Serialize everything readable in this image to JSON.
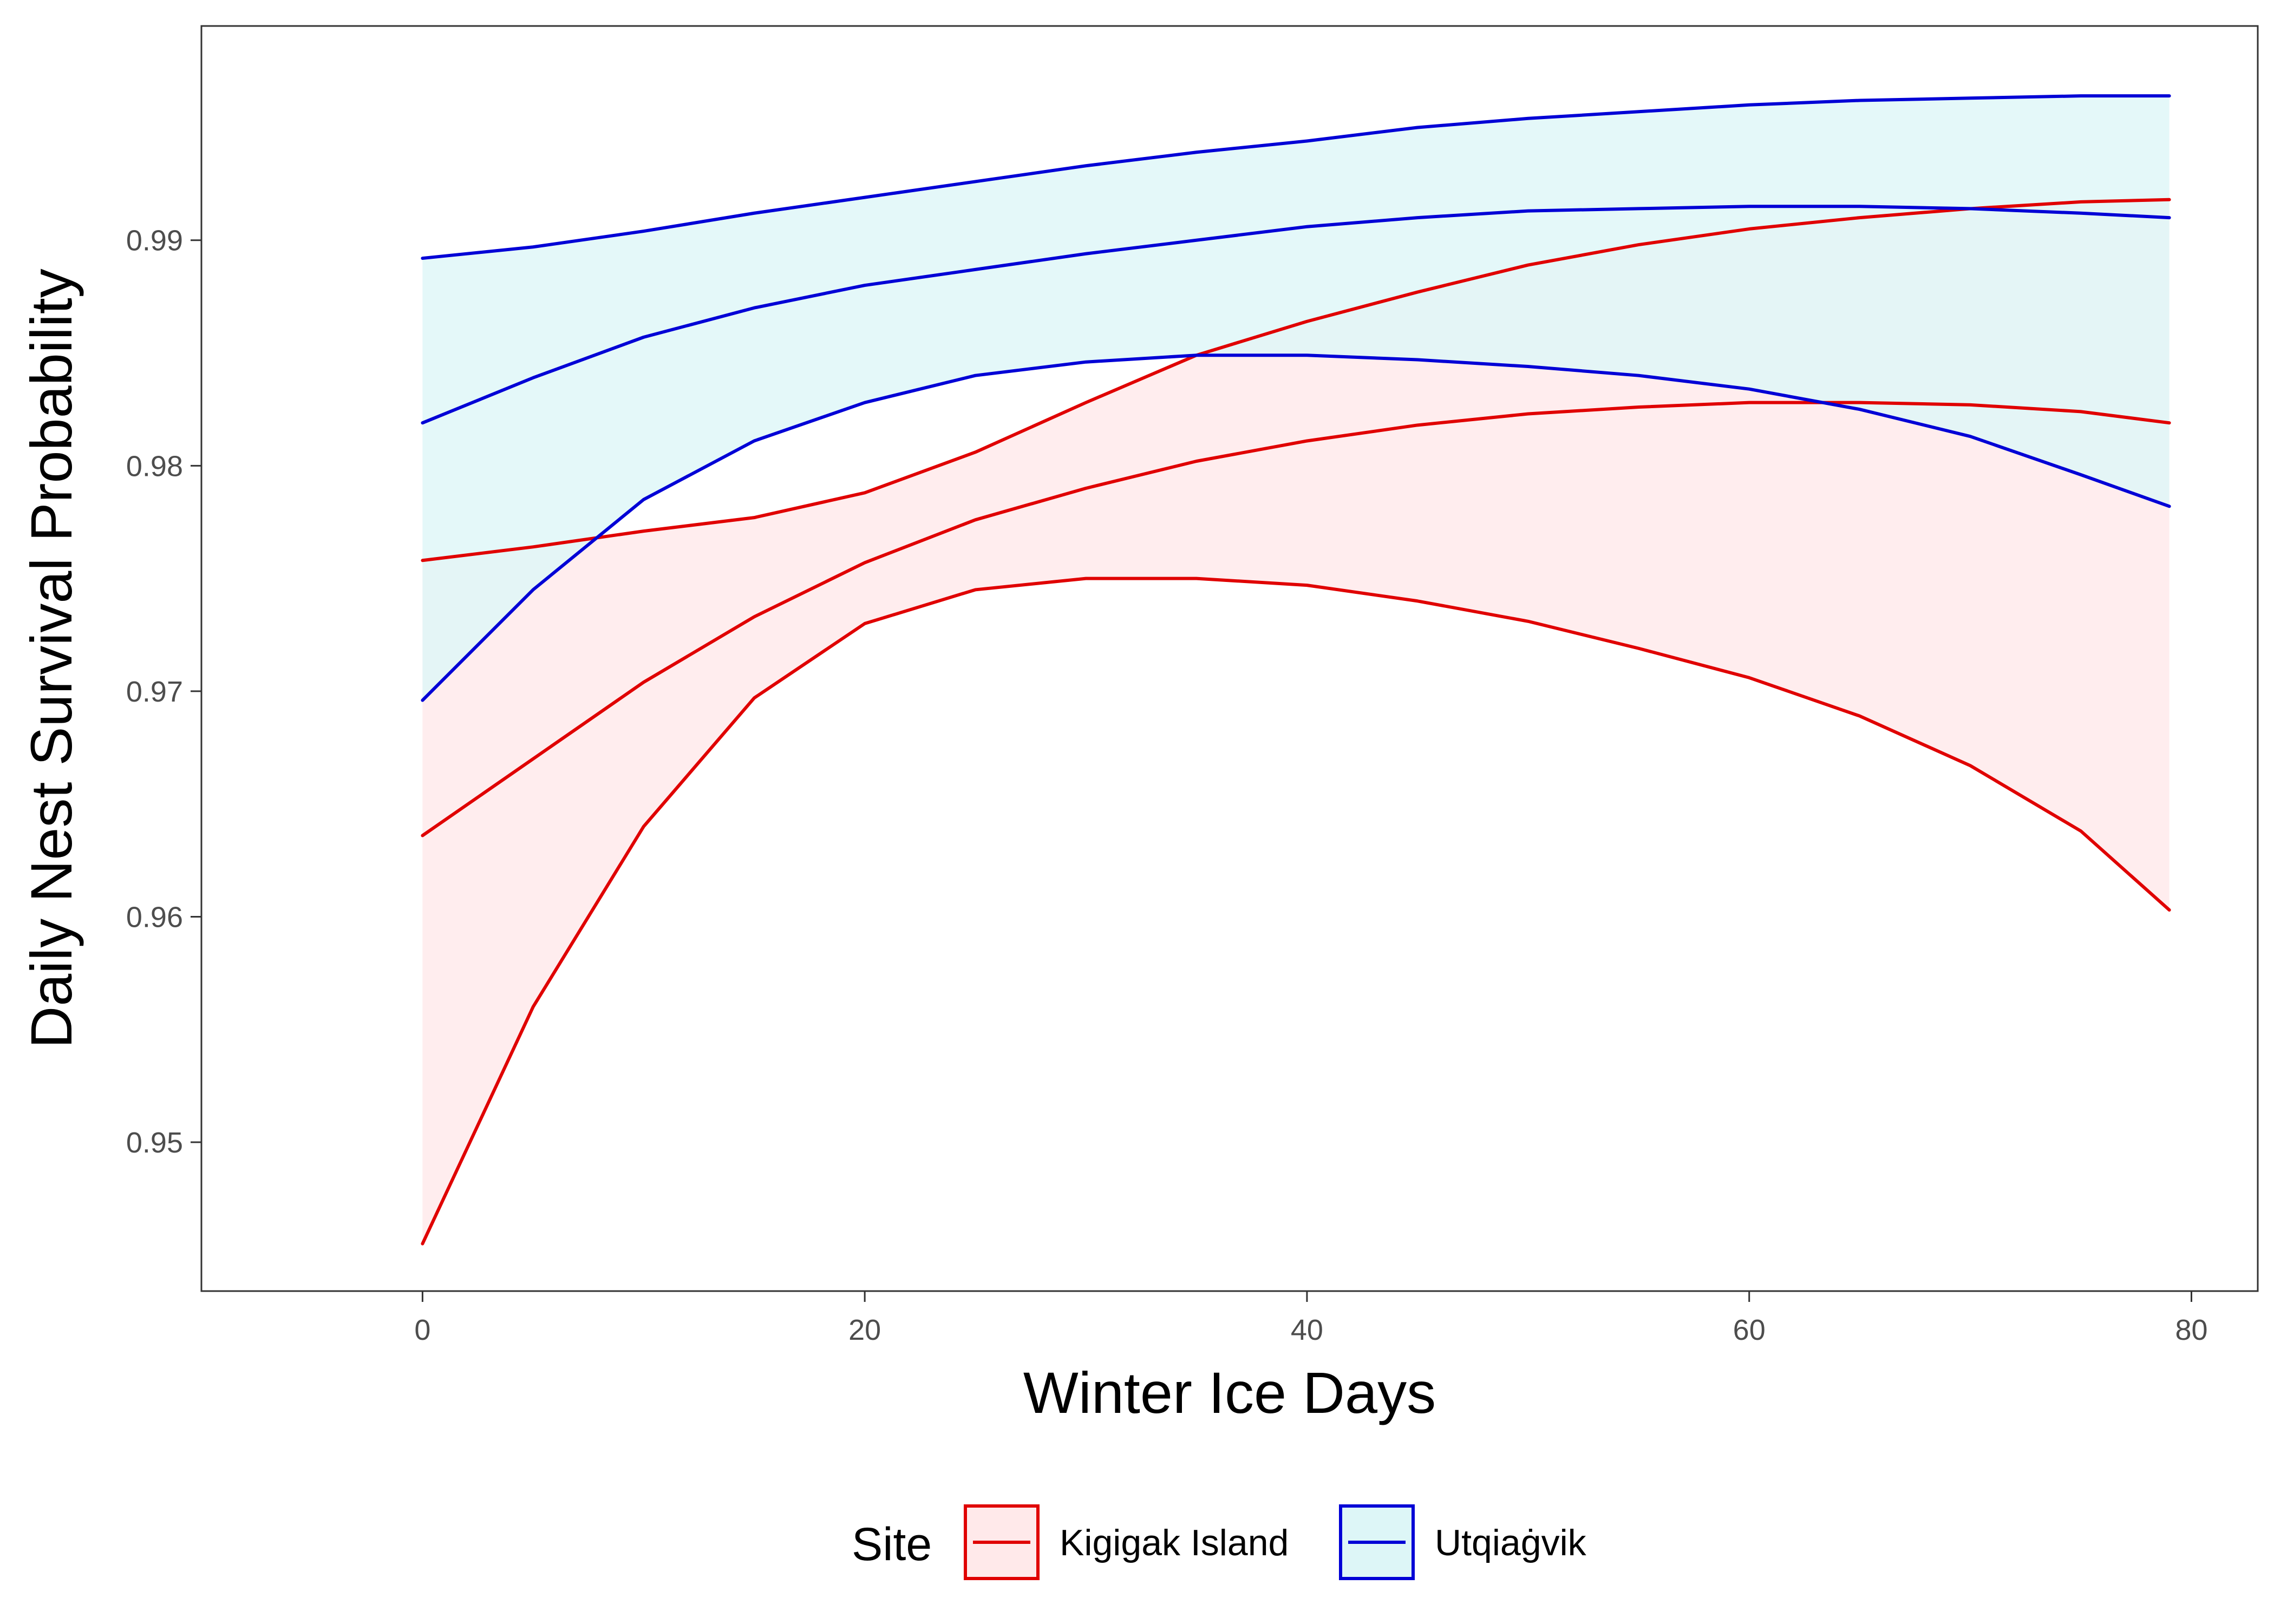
{
  "chart_data": {
    "type": "line",
    "xlabel": "Winter Ice Days",
    "ylabel": "Daily Nest Survival Probability",
    "xlim": [
      -10,
      83
    ],
    "ylim": [
      0.9434,
      0.9995
    ],
    "x_ticks": [
      0,
      20,
      40,
      60,
      80
    ],
    "y_ticks": [
      0.95,
      0.96,
      0.97,
      0.98,
      0.99
    ],
    "x_tick_labels": [
      "0",
      "20",
      "40",
      "60",
      "80"
    ],
    "y_tick_labels": [
      "0.95",
      "0.96",
      "0.97",
      "0.98",
      "0.99"
    ],
    "grid": false,
    "legend": {
      "title": "Site",
      "position": "bottom"
    },
    "x": [
      0,
      5,
      10,
      15,
      20,
      25,
      30,
      35,
      40,
      45,
      50,
      55,
      60,
      65,
      70,
      75,
      79
    ],
    "series": [
      {
        "name": "Kigigak Island",
        "color": "#e00000",
        "fill": "#ffe9ea",
        "estimate": [
          0.9636,
          0.967,
          0.9704,
          0.9733,
          0.9757,
          0.9776,
          0.979,
          0.9802,
          0.9811,
          0.9818,
          0.9823,
          0.9826,
          0.9828,
          0.9828,
          0.9827,
          0.9824,
          0.9819
        ],
        "lower": [
          0.9455,
          0.956,
          0.964,
          0.9697,
          0.973,
          0.9745,
          0.975,
          0.975,
          0.9747,
          0.974,
          0.9731,
          0.9719,
          0.9706,
          0.9689,
          0.9667,
          0.9638,
          0.9603
        ],
        "upper": [
          0.9758,
          0.9764,
          0.9771,
          0.9777,
          0.9788,
          0.9806,
          0.9828,
          0.9849,
          0.9864,
          0.9877,
          0.9889,
          0.9898,
          0.9905,
          0.991,
          0.9914,
          0.9917,
          0.9918
        ]
      },
      {
        "name": "Utqiaġvik",
        "color": "#0000d6",
        "fill": "#ddf6f7",
        "estimate": [
          0.9819,
          0.9839,
          0.9857,
          0.987,
          0.988,
          0.9887,
          0.9894,
          0.99,
          0.9906,
          0.991,
          0.9913,
          0.9914,
          0.9915,
          0.9915,
          0.9914,
          0.9912,
          0.991
        ],
        "lower": [
          0.9696,
          0.9745,
          0.9785,
          0.9811,
          0.9828,
          0.984,
          0.9846,
          0.9849,
          0.9849,
          0.9847,
          0.9844,
          0.984,
          0.9834,
          0.9825,
          0.9813,
          0.9796,
          0.9782
        ],
        "upper": [
          0.9892,
          0.9897,
          0.9904,
          0.9912,
          0.9919,
          0.9926,
          0.9933,
          0.9939,
          0.9944,
          0.995,
          0.9954,
          0.9957,
          0.996,
          0.9962,
          0.9963,
          0.9964,
          0.9964
        ]
      }
    ]
  }
}
